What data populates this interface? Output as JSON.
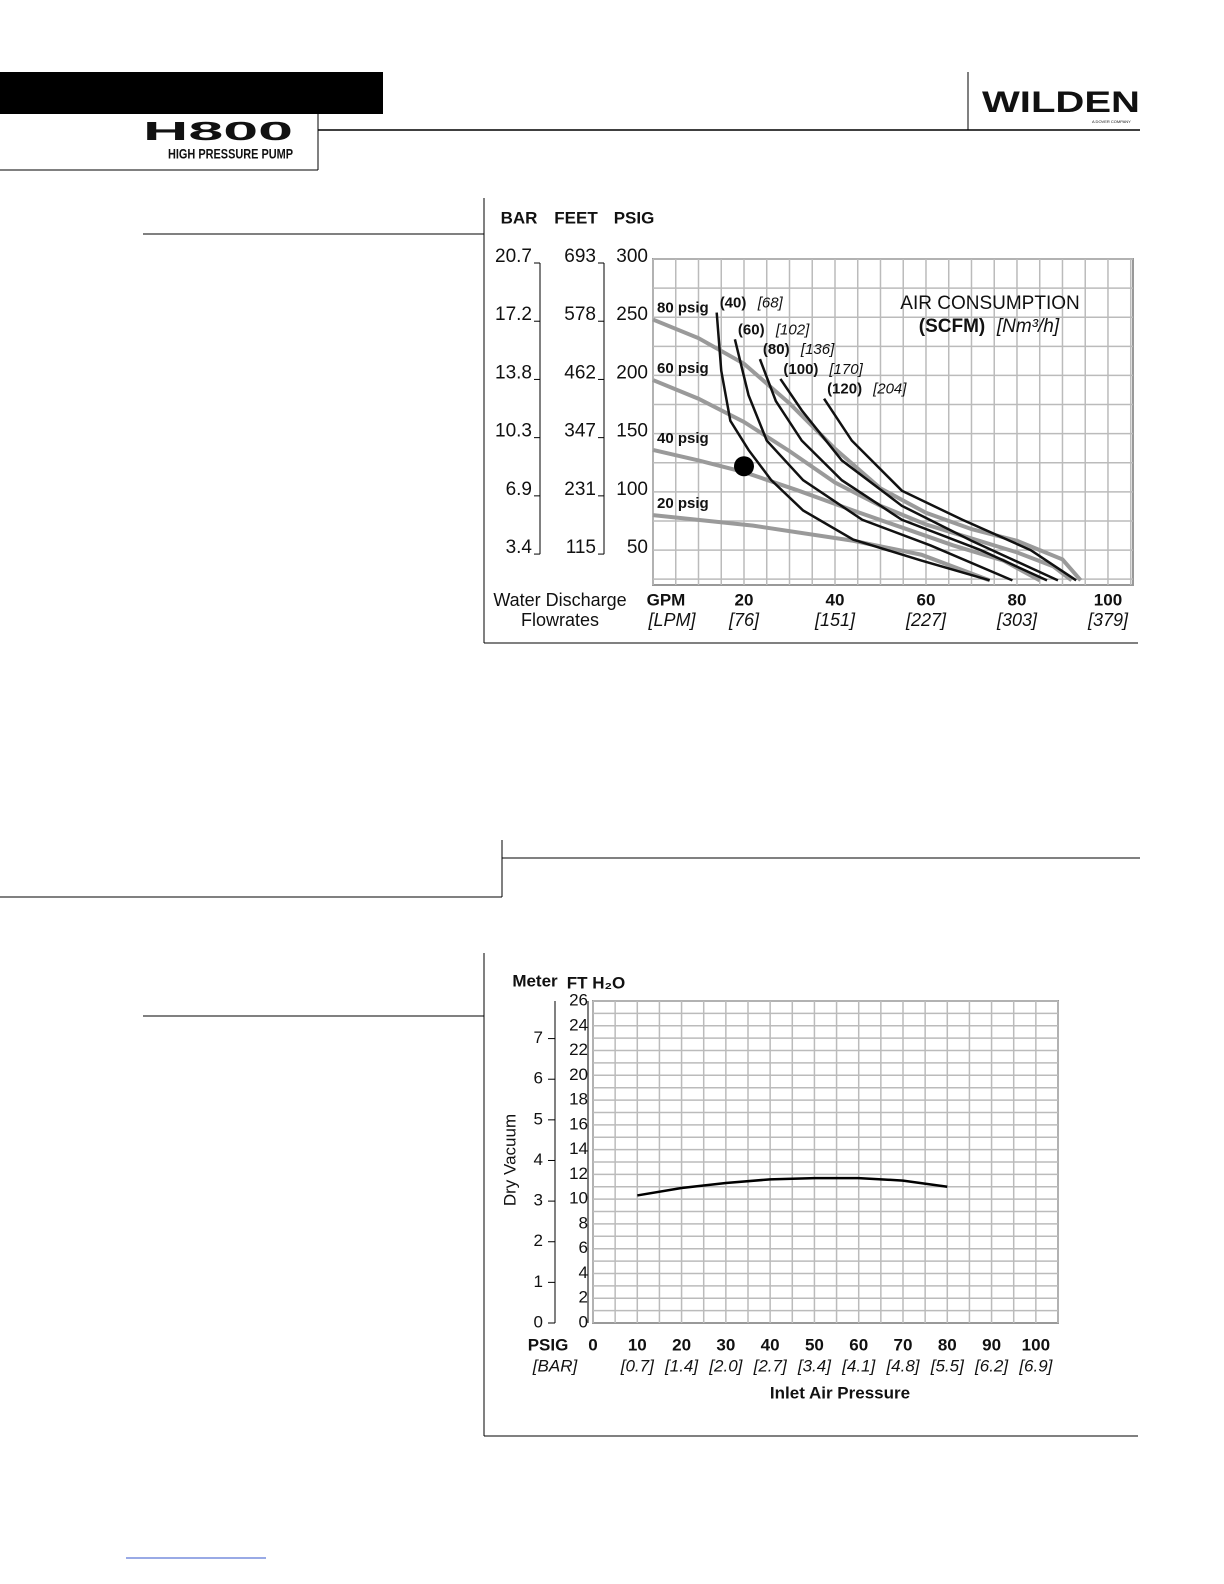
{
  "header": {
    "product": "H800",
    "subtitle": "HIGH PRESSURE PUMP",
    "brand": "WILDEN",
    "tagline": "A DOVER COMPANY"
  },
  "chart_data": [
    {
      "type": "line",
      "xlabel_lines": [
        "Water Discharge",
        "Flowrates"
      ],
      "x_unit": "GPM",
      "x_unit_alt": "[LPM]",
      "xlim": [
        0,
        105.5
      ],
      "xticks": [
        20,
        40,
        60,
        80,
        100
      ],
      "xtick_alt_labels": [
        "[76]",
        "[151]",
        "[227]",
        "[303]",
        "[379]"
      ],
      "ylim": [
        20,
        300
      ],
      "yticks": [
        50,
        100,
        150,
        200,
        250,
        300
      ],
      "y_unit": "PSIG",
      "y_alt_axes": [
        {
          "name": "FEET",
          "labels": [
            115,
            231,
            347,
            462,
            578,
            693
          ]
        },
        {
          "name": "BAR",
          "labels": [
            3.4,
            6.9,
            10.3,
            13.8,
            17.2,
            20.7
          ]
        }
      ],
      "grid": true,
      "grid_x": [
        0,
        5,
        10,
        15,
        20,
        25,
        30,
        35,
        40,
        45,
        50,
        55,
        60,
        65,
        70,
        75,
        80,
        85,
        90,
        95,
        100,
        105
      ],
      "grid_y": [
        25,
        50,
        75,
        100,
        125,
        150,
        175,
        200,
        225,
        250,
        275,
        300
      ],
      "series": [
        {
          "name": "80 psig",
          "color": "#9a9a9a",
          "x": [
            0,
            10,
            20,
            30,
            40,
            50,
            60,
            70,
            80,
            90,
            94
          ],
          "values": [
            248,
            232,
            210,
            176,
            137,
            103,
            82,
            68,
            58,
            42,
            24
          ]
        },
        {
          "name": "60 psig",
          "color": "#9a9a9a",
          "x": [
            0,
            10,
            20,
            30,
            40,
            50,
            60,
            70,
            80,
            88,
            92
          ],
          "values": [
            196,
            180,
            160,
            135,
            108,
            88,
            72,
            60,
            48,
            36,
            24
          ]
        },
        {
          "name": "40 psig",
          "color": "#9a9a9a",
          "x": [
            0,
            10,
            20,
            32,
            44,
            55,
            66,
            77,
            85
          ],
          "values": [
            136,
            127,
            117,
            101,
            84,
            69,
            54,
            41,
            24
          ]
        },
        {
          "name": "20 psig",
          "color": "#9a9a9a",
          "x": [
            0,
            22,
            44,
            59,
            74
          ],
          "values": [
            80,
            71,
            58,
            46,
            24
          ]
        },
        {
          "name": "(40)",
          "alt_name": "[68]",
          "color": "#111111",
          "x": [
            14,
            15,
            17,
            21,
            26,
            33,
            44,
            59,
            74
          ],
          "values": [
            254,
            204,
            161,
            136,
            110,
            84,
            59,
            41,
            24
          ]
        },
        {
          "name": "(60)",
          "alt_name": "[102]",
          "color": "#111111",
          "x": [
            18,
            21,
            25,
            33,
            46,
            61,
            79
          ],
          "values": [
            231,
            183,
            144,
            110,
            76,
            54,
            24
          ]
        },
        {
          "name": "(80)",
          "alt_name": "[136]",
          "color": "#111111",
          "x": [
            23.5,
            27,
            32.7,
            41.5,
            54.7,
            72,
            86.6
          ],
          "values": [
            214,
            178,
            144,
            110,
            76,
            50,
            24
          ]
        },
        {
          "name": "(100)",
          "alt_name": "[170]",
          "color": "#111111",
          "x": [
            28,
            32.7,
            41.5,
            54.7,
            70,
            89
          ],
          "values": [
            197,
            170,
            127,
            88,
            58,
            24
          ]
        },
        {
          "name": "(120)",
          "alt_name": "[204]",
          "color": "#111111",
          "x": [
            37.6,
            43.7,
            54.7,
            68,
            83,
            93
          ],
          "values": [
            180,
            144,
            101,
            76,
            50,
            24
          ]
        }
      ],
      "annotation": [
        "AIR CONSUMPTION",
        "(SCFM)",
        "[Nm³/h]"
      ],
      "point": {
        "x": 20,
        "y": 122,
        "color": "#000000"
      }
    },
    {
      "type": "line",
      "xlabel": "Inlet Air Pressure",
      "x_unit": "PSIG",
      "x_unit_alt": "[BAR]",
      "xlim": [
        0,
        105
      ],
      "xticks": [
        0,
        10,
        20,
        30,
        40,
        50,
        60,
        70,
        80,
        90,
        100
      ],
      "xtick_alt_labels": [
        null,
        "[0.7]",
        "[1.4]",
        "[2.0]",
        "[2.7]",
        "[3.4]",
        "[4.1]",
        "[4.8]",
        "[5.5]",
        "[6.2]",
        "[6.9]"
      ],
      "ylabel": "Dry Vacuum",
      "y_unit": "FT H₂O",
      "y2_unit": "Meter",
      "ylim": [
        0,
        26
      ],
      "yticks": [
        0,
        2,
        4,
        6,
        8,
        10,
        12,
        14,
        16,
        18,
        20,
        22,
        24,
        26
      ],
      "y2lim": [
        0,
        7.925
      ],
      "y2ticks": [
        0,
        1,
        2,
        3,
        4,
        5,
        6,
        7
      ],
      "grid": true,
      "grid_x": [
        0,
        5,
        10,
        15,
        20,
        25,
        30,
        35,
        40,
        45,
        50,
        55,
        60,
        65,
        70,
        75,
        80,
        85,
        90,
        95,
        100,
        105
      ],
      "grid_y": [
        1,
        2,
        3,
        4,
        5,
        6,
        7,
        8,
        9,
        10,
        11,
        12,
        13,
        14,
        15,
        16,
        17,
        18,
        19,
        20,
        21,
        22,
        23,
        24,
        25,
        26
      ],
      "series": [
        {
          "color": "#000000",
          "x": [
            10,
            20,
            30,
            40,
            50,
            60,
            70,
            80
          ],
          "values": [
            10.3,
            10.9,
            11.3,
            11.6,
            11.7,
            11.7,
            11.5,
            11.0
          ]
        }
      ]
    }
  ]
}
